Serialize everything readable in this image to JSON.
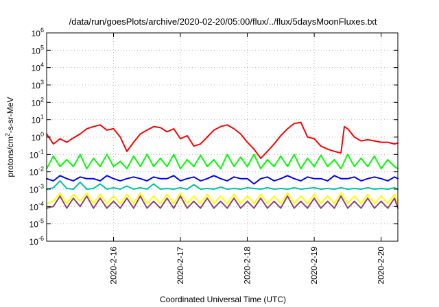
{
  "chart_data": {
    "type": "line",
    "title": "/data/run/goesPlots/archive/2020-02-20/05:00/flux/../flux/5daysMoonFluxes.txt",
    "xlabel": "Coordinated Universal Time (UTC)",
    "ylabel": "protons/cm²-s-sr-MeV",
    "ylabel_parts": {
      "before": "protons/cm",
      "sup": "2",
      "after": "-s-sr-MeV"
    },
    "y_scale": "log",
    "ylim": [
      1e-06,
      1000000.0
    ],
    "xlim": [
      15.0,
      20.25
    ],
    "x_unit": "days of 2020-02",
    "grid": true,
    "y_ticks": [
      {
        "base": "10",
        "exp": "-6",
        "value": -6
      },
      {
        "base": "10",
        "exp": "-5",
        "value": -5
      },
      {
        "base": "10",
        "exp": "-4",
        "value": -4
      },
      {
        "base": "10",
        "exp": "-3",
        "value": -3
      },
      {
        "base": "10",
        "exp": "-2",
        "value": -2
      },
      {
        "base": "10",
        "exp": "-1",
        "value": -1
      },
      {
        "base": "10",
        "exp": "0",
        "value": 0
      },
      {
        "base": "10",
        "exp": "1",
        "value": 1
      },
      {
        "base": "10",
        "exp": "2",
        "value": 2
      },
      {
        "base": "10",
        "exp": "3",
        "value": 3
      },
      {
        "base": "10",
        "exp": "4",
        "value": 4
      },
      {
        "base": "10",
        "exp": "5",
        "value": 5
      },
      {
        "base": "10",
        "exp": "6",
        "value": 6
      }
    ],
    "x_ticks": [
      {
        "label": "2020-2-16",
        "value": 16
      },
      {
        "label": "2020-2-17",
        "value": 17
      },
      {
        "label": "2020-2-18",
        "value": 18
      },
      {
        "label": "2020-2-19",
        "value": 19
      },
      {
        "label": "2020-2-20",
        "value": 20
      }
    ],
    "series": [
      {
        "color": "#ff0000",
        "x": [
          15.0,
          15.1,
          15.2,
          15.3,
          15.4,
          15.5,
          15.6,
          15.7,
          15.8,
          15.9,
          16.0,
          16.1,
          16.2,
          16.3,
          16.4,
          16.5,
          16.6,
          16.7,
          16.8,
          16.9,
          17.0,
          17.1,
          17.2,
          17.3,
          17.4,
          17.5,
          17.6,
          17.7,
          17.8,
          17.9,
          18.0,
          18.1,
          18.2,
          18.3,
          18.4,
          18.5,
          18.6,
          18.7,
          18.8,
          18.9,
          19.0,
          19.1,
          19.2,
          19.3,
          19.4,
          19.45,
          19.5,
          19.6,
          19.7,
          19.8,
          19.9,
          20.0,
          20.1,
          20.2,
          20.25
        ],
        "values": [
          1.5,
          0.4,
          0.8,
          0.5,
          0.9,
          1.5,
          3.0,
          4.0,
          5.0,
          2.5,
          3.0,
          1.0,
          0.15,
          0.5,
          1.5,
          2.5,
          4.0,
          3.5,
          2.0,
          3.0,
          0.8,
          1.2,
          0.3,
          0.4,
          1.0,
          2.5,
          4.0,
          5.0,
          3.0,
          1.5,
          0.5,
          0.2,
          0.06,
          0.15,
          0.4,
          1.2,
          3.0,
          6.0,
          7.0,
          1.0,
          0.8,
          0.3,
          0.2,
          0.15,
          0.12,
          4.0,
          3.0,
          1.0,
          0.6,
          0.7,
          0.6,
          0.5,
          0.5,
          0.4,
          0.45
        ]
      },
      {
        "color": "#00ff00",
        "x": [
          15.0,
          15.1,
          15.2,
          15.3,
          15.4,
          15.5,
          15.6,
          15.7,
          15.8,
          15.9,
          16.0,
          16.1,
          16.2,
          16.3,
          16.4,
          16.5,
          16.6,
          16.7,
          16.8,
          16.9,
          17.0,
          17.1,
          17.2,
          17.3,
          17.4,
          17.5,
          17.6,
          17.7,
          17.8,
          17.9,
          18.0,
          18.1,
          18.2,
          18.3,
          18.4,
          18.5,
          18.6,
          18.7,
          18.8,
          18.9,
          19.0,
          19.1,
          19.2,
          19.3,
          19.4,
          19.5,
          19.6,
          19.7,
          19.8,
          19.9,
          20.0,
          20.1,
          20.2,
          20.25
        ],
        "values": [
          0.015,
          0.08,
          0.02,
          0.05,
          0.02,
          0.1,
          0.015,
          0.06,
          0.02,
          0.1,
          0.02,
          0.04,
          0.015,
          0.08,
          0.02,
          0.1,
          0.02,
          0.06,
          0.02,
          0.1,
          0.015,
          0.05,
          0.02,
          0.09,
          0.02,
          0.05,
          0.015,
          0.1,
          0.02,
          0.07,
          0.02,
          0.1,
          0.015,
          0.05,
          0.02,
          0.08,
          0.02,
          0.1,
          0.015,
          0.06,
          0.02,
          0.09,
          0.02,
          0.05,
          0.015,
          0.1,
          0.02,
          0.06,
          0.02,
          0.08,
          0.015,
          0.05,
          0.02,
          0.015
        ]
      },
      {
        "color": "#0000ff",
        "x": [
          15.0,
          15.1,
          15.2,
          15.3,
          15.4,
          15.5,
          15.6,
          15.7,
          15.8,
          15.9,
          16.0,
          16.1,
          16.2,
          16.3,
          16.4,
          16.5,
          16.6,
          16.7,
          16.8,
          16.9,
          17.0,
          17.1,
          17.2,
          17.3,
          17.4,
          17.5,
          17.6,
          17.7,
          17.8,
          17.9,
          18.0,
          18.1,
          18.2,
          18.3,
          18.4,
          18.5,
          18.6,
          18.7,
          18.8,
          18.9,
          19.0,
          19.1,
          19.2,
          19.3,
          19.4,
          19.5,
          19.6,
          19.7,
          19.8,
          19.9,
          20.0,
          20.1,
          20.2,
          20.25
        ],
        "values": [
          0.004,
          0.003,
          0.006,
          0.004,
          0.003,
          0.005,
          0.004,
          0.004,
          0.003,
          0.006,
          0.004,
          0.003,
          0.004,
          0.005,
          0.004,
          0.003,
          0.005,
          0.004,
          0.004,
          0.006,
          0.003,
          0.004,
          0.005,
          0.003,
          0.004,
          0.006,
          0.004,
          0.003,
          0.005,
          0.004,
          0.004,
          0.002,
          0.004,
          0.005,
          0.003,
          0.004,
          0.006,
          0.004,
          0.003,
          0.005,
          0.004,
          0.004,
          0.003,
          0.006,
          0.004,
          0.004,
          0.005,
          0.003,
          0.004,
          0.005,
          0.004,
          0.003,
          0.005,
          0.004
        ]
      },
      {
        "color": "#00c0a0",
        "x": [
          15.0,
          15.1,
          15.2,
          15.3,
          15.4,
          15.5,
          15.6,
          15.7,
          15.8,
          15.9,
          16.0,
          16.1,
          16.2,
          16.3,
          16.4,
          16.5,
          16.6,
          16.7,
          16.8,
          16.9,
          17.0,
          17.1,
          17.2,
          17.3,
          17.4,
          17.5,
          17.6,
          17.7,
          17.8,
          17.9,
          18.0,
          18.1,
          18.2,
          18.3,
          18.4,
          18.5,
          18.6,
          18.7,
          18.8,
          18.9,
          19.0,
          19.1,
          19.2,
          19.3,
          19.4,
          19.5,
          19.6,
          19.7,
          19.8,
          19.9,
          20.0,
          20.1,
          20.2,
          20.25
        ],
        "values": [
          0.001,
          0.0012,
          0.003,
          0.0011,
          0.001,
          0.0025,
          0.001,
          0.0011,
          0.002,
          0.001,
          0.0012,
          0.001,
          0.0015,
          0.001,
          0.0012,
          0.001,
          0.002,
          0.001,
          0.0011,
          0.001,
          0.0012,
          0.001,
          0.0018,
          0.001,
          0.0011,
          0.001,
          0.0013,
          0.001,
          0.0011,
          0.001,
          0.0012,
          0.0011,
          0.001,
          0.0012,
          0.001,
          0.0011,
          0.001,
          0.0012,
          0.001,
          0.0011,
          0.0012,
          0.001,
          0.0011,
          0.001,
          0.0012,
          0.001,
          0.0011,
          0.001,
          0.0012,
          0.001,
          0.0011,
          0.001,
          0.0012,
          0.001
        ]
      },
      {
        "color": "#ffff00",
        "x": [
          15.0,
          15.1,
          15.2,
          15.3,
          15.4,
          15.5,
          15.6,
          15.7,
          15.8,
          15.9,
          16.0,
          16.1,
          16.2,
          16.3,
          16.4,
          16.5,
          16.6,
          16.7,
          16.8,
          16.9,
          17.0,
          17.1,
          17.2,
          17.3,
          17.4,
          17.5,
          17.6,
          17.7,
          17.8,
          17.9,
          18.0,
          18.1,
          18.2,
          18.3,
          18.4,
          18.5,
          18.6,
          18.7,
          18.8,
          18.9,
          19.0,
          19.1,
          19.2,
          19.3,
          19.4,
          19.5,
          19.6,
          19.7,
          19.8,
          19.9,
          20.0,
          20.1,
          20.2,
          20.25
        ],
        "values": [
          0.00015,
          0.0002,
          0.0006,
          0.00015,
          0.0005,
          0.0002,
          0.0006,
          0.00015,
          0.0005,
          0.00015,
          0.0004,
          0.00015,
          0.0005,
          0.00015,
          0.0006,
          0.00015,
          0.0004,
          0.00015,
          0.0005,
          0.00015,
          0.0006,
          0.00015,
          0.0004,
          0.00015,
          0.0005,
          0.00015,
          0.0004,
          0.00015,
          0.0005,
          0.00015,
          0.0004,
          0.00015,
          0.0005,
          0.00015,
          0.0004,
          0.00015,
          0.0006,
          0.00015,
          0.0004,
          0.00015,
          0.0005,
          0.00015,
          0.0004,
          0.00015,
          0.0006,
          0.00015,
          0.0004,
          0.00015,
          0.0005,
          0.00015,
          0.0004,
          0.00015,
          0.0005,
          0.00015
        ]
      },
      {
        "color": "#904070",
        "x": [
          15.0,
          15.1,
          15.2,
          15.3,
          15.4,
          15.5,
          15.6,
          15.7,
          15.8,
          15.9,
          16.0,
          16.1,
          16.2,
          16.3,
          16.4,
          16.5,
          16.6,
          16.7,
          16.8,
          16.9,
          17.0,
          17.1,
          17.2,
          17.3,
          17.4,
          17.5,
          17.6,
          17.7,
          17.8,
          17.9,
          18.0,
          18.1,
          18.2,
          18.3,
          18.4,
          18.5,
          18.6,
          18.7,
          18.8,
          18.9,
          19.0,
          19.1,
          19.2,
          19.3,
          19.4,
          19.5,
          19.6,
          19.7,
          19.8,
          19.9,
          20.0,
          20.1,
          20.2,
          20.25
        ],
        "values": [
          8e-05,
          0.0001,
          0.0004,
          8e-05,
          0.0003,
          0.0001,
          0.0004,
          8e-05,
          0.0003,
          8e-05,
          0.0002,
          8e-05,
          0.0003,
          8e-05,
          0.0004,
          8e-05,
          0.0002,
          8e-05,
          0.0003,
          8e-05,
          0.0004,
          8e-05,
          0.0002,
          8e-05,
          0.0003,
          8e-05,
          0.0002,
          8e-05,
          0.0003,
          8e-05,
          0.0002,
          8e-05,
          0.0003,
          8e-05,
          0.0002,
          8e-05,
          0.0004,
          8e-05,
          0.0002,
          8e-05,
          0.0003,
          8e-05,
          0.0002,
          8e-05,
          0.0004,
          8e-05,
          0.0002,
          8e-05,
          0.0003,
          8e-05,
          0.0002,
          8e-05,
          0.0003,
          8e-05
        ]
      }
    ]
  }
}
